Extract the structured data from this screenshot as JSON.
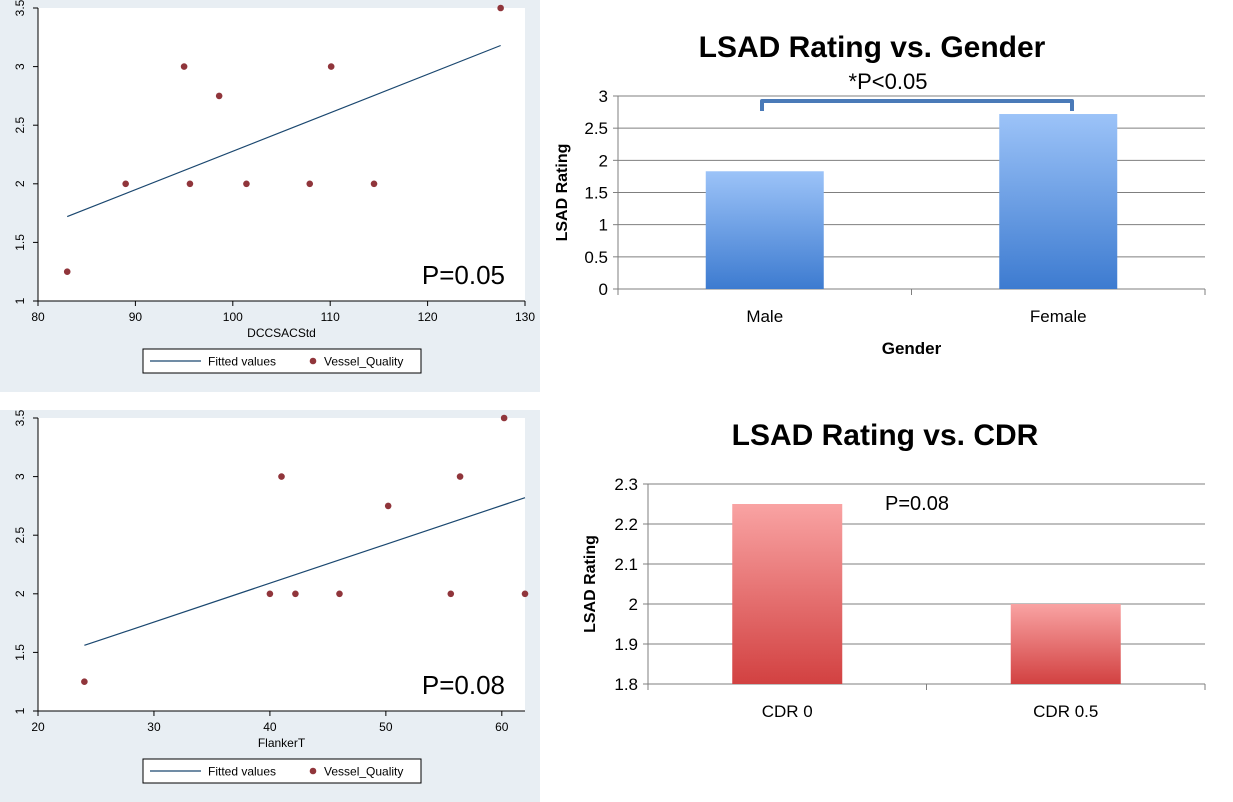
{
  "colors": {
    "stata_bg": "#e8eef3",
    "fit_line": "#1a476f",
    "points": "#90353b",
    "bar_blue_top": "#9cc3f8",
    "bar_blue_bottom": "#3d7bd0",
    "bar_red_top": "#f9a3a3",
    "bar_red_bottom": "#d24141",
    "bracket": "#4a7ab8"
  },
  "chart_data": [
    {
      "type": "scatter",
      "xlabel": "DCCSACStd",
      "ylabel": "",
      "xlim": [
        80,
        130
      ],
      "ylim": [
        1,
        3.5
      ],
      "xticks": [
        "80",
        "90",
        "100",
        "110",
        "120",
        "130"
      ],
      "yticks": [
        "1",
        "1.5",
        "2",
        "2.5",
        "3",
        "3.5"
      ],
      "annotation": "P=0.05",
      "legend": [
        "Fitted values",
        "Vessel_Quality"
      ],
      "legend_position": "bottom",
      "series": [
        {
          "name": "Fitted values",
          "kind": "line",
          "x": [
            83,
            127.5
          ],
          "y": [
            1.72,
            3.18
          ]
        },
        {
          "name": "Vessel_Quality",
          "kind": "points",
          "x": [
            83,
            89,
            95,
            95.6,
            98.6,
            101.4,
            107.9,
            110.1,
            114.5,
            127.5
          ],
          "y": [
            1.25,
            2,
            3,
            2,
            2.75,
            2,
            2,
            3,
            2,
            3.5
          ]
        }
      ]
    },
    {
      "type": "bar",
      "title": "LSAD Rating vs. Gender",
      "annotation": "*P<0.05",
      "xlabel": "Gender",
      "ylabel": "LSAD Rating",
      "ylim": [
        0,
        3
      ],
      "yticks": [
        "0",
        "0.5",
        "1",
        "1.5",
        "2",
        "2.5",
        "3"
      ],
      "categories": [
        "Male",
        "Female"
      ],
      "values": [
        1.83,
        2.72
      ],
      "grid": true
    },
    {
      "type": "scatter",
      "xlabel": "FlankerT",
      "ylabel": "",
      "xlim": [
        20,
        62
      ],
      "ylim": [
        1,
        3.5
      ],
      "xticks": [
        "20",
        "30",
        "40",
        "50",
        "60"
      ],
      "yticks": [
        "1",
        "1.5",
        "2",
        "2.5",
        "3",
        "3.5"
      ],
      "annotation": "P=0.08",
      "legend": [
        "Fitted values",
        "Vessel_Quality"
      ],
      "legend_position": "bottom",
      "series": [
        {
          "name": "Fitted values",
          "kind": "line",
          "x": [
            24,
            62
          ],
          "y": [
            1.56,
            2.82
          ]
        },
        {
          "name": "Vessel_Quality",
          "kind": "points",
          "x": [
            24,
            40,
            41,
            42.2,
            46,
            50.2,
            55.6,
            56.4,
            60.2,
            62
          ],
          "y": [
            1.25,
            2,
            3,
            2,
            2,
            2.75,
            2,
            3,
            3.5,
            2
          ]
        }
      ]
    },
    {
      "type": "bar",
      "title": "LSAD Rating vs. CDR",
      "annotation": "P=0.08",
      "xlabel": "",
      "ylabel": "LSAD Rating",
      "ylim": [
        1.8,
        2.3
      ],
      "yticks": [
        "1.8",
        "1.9",
        "2",
        "2.1",
        "2.2",
        "2.3"
      ],
      "categories": [
        "CDR 0",
        "CDR 0.5"
      ],
      "values": [
        2.25,
        2.0
      ],
      "grid": true
    }
  ]
}
